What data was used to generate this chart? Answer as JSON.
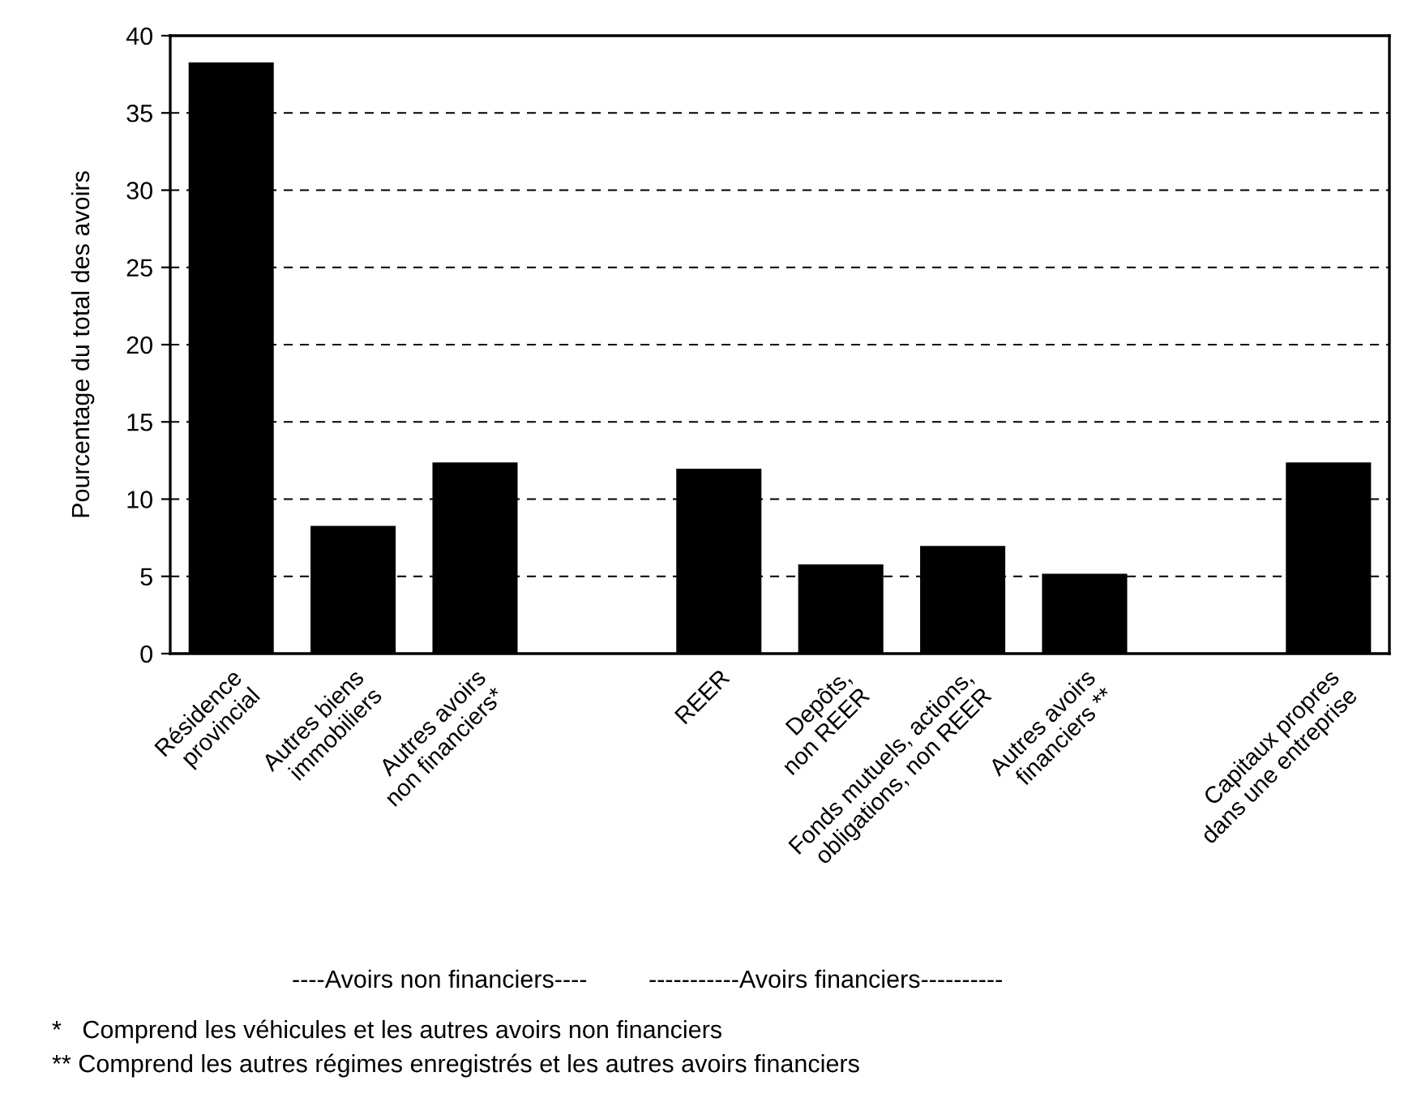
{
  "chart_data": {
    "type": "bar",
    "ylabel": "Pourcentage du total des avoirs",
    "categories": [
      "Résidence\nprovincial",
      "Autres biens\nimmobiliers",
      "Autres avoirs\nnon financiers*",
      null,
      "REER",
      "Depôts,\nnon REER",
      "Fonds mutuels, actions,\nobligations, non REER",
      "Autres avoirs\nfinanciers **",
      null,
      "Capitaux propres\ndans une entreprise"
    ],
    "values": [
      38.2,
      8.2,
      12.3,
      null,
      11.9,
      5.7,
      6.9,
      5.1,
      null,
      12.3
    ],
    "color": "#000000",
    "ylim": [
      0,
      40
    ],
    "yticks": [
      0,
      5,
      10,
      15,
      20,
      25,
      30,
      35,
      40
    ],
    "grid": "y",
    "annotations": [
      "----Avoirs non financiers----",
      "-----------Avoirs financiers----------",
      "*   Comprend les véhicules et les autres avoirs non financiers",
      "** Comprend les autres régimes enregistrés et les autres avoirs financiers"
    ]
  }
}
